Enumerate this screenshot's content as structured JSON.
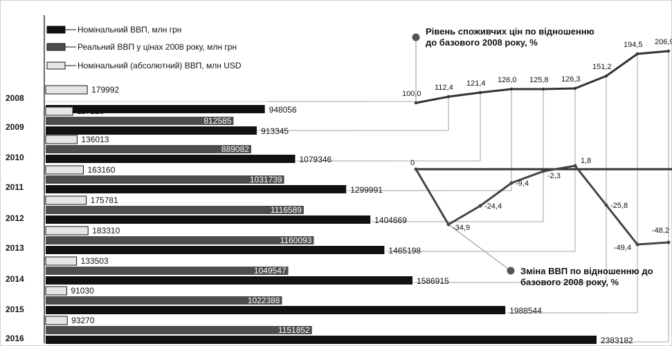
{
  "chart_data": [
    {
      "type": "bar",
      "orientation": "horizontal",
      "categories": [
        "2008",
        "2009",
        "2010",
        "2011",
        "2012",
        "2013",
        "2014",
        "2015",
        "2016"
      ],
      "legend_placement": "top-left",
      "series": [
        {
          "name": "Номінальний ВВП, млн грн",
          "color": "#111111",
          "values": [
            948056,
            913345,
            1079346,
            1299991,
            1404669,
            1465198,
            1586915,
            1988544,
            2383182
          ]
        },
        {
          "name": "Реальний ВВП у цінах 2008 року, млн грн",
          "color": "#4d4d4d",
          "values": [
            null,
            812585,
            889082,
            1031739,
            1116589,
            1160093,
            1049547,
            1022388,
            1151852
          ]
        },
        {
          "name": "Номінальний (абсолютний) ВВП, млн USD",
          "color": "#e6e6e6",
          "values": [
            179992,
            117228,
            136013,
            163160,
            175781,
            183310,
            133503,
            91030,
            93270
          ]
        }
      ]
    },
    {
      "type": "line",
      "title": "Рівень споживчих цін по відношенню до базового 2008 року, %",
      "x": [
        "2008",
        "2009",
        "2010",
        "2011",
        "2012",
        "2013",
        "2014",
        "2015",
        "2016"
      ],
      "values": [
        100.0,
        112.4,
        121.4,
        126.0,
        125.8,
        126.3,
        151.2,
        194.5,
        206.9
      ],
      "labels": [
        "100,0",
        "112,4",
        "121,4",
        "126,0",
        "125,8",
        "126,3",
        "151,2",
        "194,5",
        "206,9"
      ]
    },
    {
      "type": "line",
      "title": "Зміна ВВП по відношенню до базового 2008 року, %",
      "x": [
        "2008",
        "2009",
        "2010",
        "2011",
        "2012",
        "2013",
        "2014",
        "2015",
        "2016"
      ],
      "values": [
        0,
        -34.9,
        -24.4,
        -9.4,
        -2.3,
        1.8,
        -25.8,
        -49.4,
        -48.2
      ],
      "labels": [
        "0",
        "-34,9",
        "-24,4",
        "-9,4",
        "-2,3",
        "1,8",
        "-25,8",
        "-49,4",
        "-48,2"
      ]
    }
  ]
}
